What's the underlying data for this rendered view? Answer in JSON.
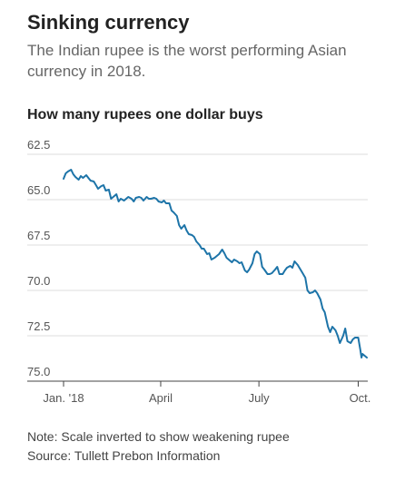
{
  "title": "Sinking currency",
  "subtitle": "The Indian rupee is the worst performing Asian currency in 2018.",
  "chart_title": "How many rupees one dollar buys",
  "note": "Note: Scale inverted to show weakening rupee",
  "source": "Source: Tullett Prebon Information",
  "colors": {
    "line": "#1d74a8",
    "grid": "#dddddd",
    "axis": "#444444"
  },
  "chart_data": {
    "type": "line",
    "xlabel": "",
    "ylabel": "",
    "y_inverted": true,
    "ylim": [
      62.5,
      75.0
    ],
    "y_ticks": [
      62.5,
      65.0,
      67.5,
      70.0,
      72.5,
      75.0
    ],
    "y_tick_labels": [
      "62.5",
      "65.0",
      "67.5",
      "70.0",
      "72.5",
      "75.0"
    ],
    "x_ticks": [
      {
        "label": "Jan. '18",
        "date": "2018-01-01"
      },
      {
        "label": "April",
        "date": "2018-04-01"
      },
      {
        "label": "July",
        "date": "2018-07-01"
      },
      {
        "label": "Oct.",
        "date": "2018-10-01"
      }
    ],
    "series": [
      {
        "x": [
          "2018-01-01",
          "2018-01-03",
          "2018-01-05",
          "2018-01-08",
          "2018-01-10",
          "2018-01-12",
          "2018-01-15",
          "2018-01-17",
          "2018-01-19",
          "2018-01-22",
          "2018-01-24",
          "2018-01-26",
          "2018-01-29",
          "2018-01-31",
          "2018-02-02",
          "2018-02-05",
          "2018-02-07",
          "2018-02-09",
          "2018-02-12",
          "2018-02-14",
          "2018-02-16",
          "2018-02-19",
          "2018-02-21",
          "2018-02-23",
          "2018-02-26",
          "2018-02-28",
          "2018-03-02",
          "2018-03-05",
          "2018-03-07",
          "2018-03-09",
          "2018-03-12",
          "2018-03-14",
          "2018-03-16",
          "2018-03-19",
          "2018-03-21",
          "2018-03-23",
          "2018-03-26",
          "2018-03-28",
          "2018-03-30",
          "2018-04-02",
          "2018-04-04",
          "2018-04-06",
          "2018-04-09",
          "2018-04-11",
          "2018-04-13",
          "2018-04-16",
          "2018-04-18",
          "2018-04-20",
          "2018-04-23",
          "2018-04-25",
          "2018-04-27",
          "2018-04-30",
          "2018-05-02",
          "2018-05-04",
          "2018-05-07",
          "2018-05-09",
          "2018-05-11",
          "2018-05-14",
          "2018-05-16",
          "2018-05-18",
          "2018-05-21",
          "2018-05-23",
          "2018-05-25",
          "2018-05-28",
          "2018-05-30",
          "2018-06-01",
          "2018-06-04",
          "2018-06-06",
          "2018-06-08",
          "2018-06-11",
          "2018-06-13",
          "2018-06-15",
          "2018-06-18",
          "2018-06-20",
          "2018-06-22",
          "2018-06-25",
          "2018-06-27",
          "2018-06-29",
          "2018-07-02",
          "2018-07-04",
          "2018-07-06",
          "2018-07-09",
          "2018-07-11",
          "2018-07-13",
          "2018-07-16",
          "2018-07-18",
          "2018-07-20",
          "2018-07-23",
          "2018-07-25",
          "2018-07-27",
          "2018-07-30",
          "2018-08-01",
          "2018-08-03",
          "2018-08-06",
          "2018-08-08",
          "2018-08-10",
          "2018-08-13",
          "2018-08-15",
          "2018-08-17",
          "2018-08-20",
          "2018-08-22",
          "2018-08-24",
          "2018-08-27",
          "2018-08-29",
          "2018-08-31",
          "2018-09-03",
          "2018-09-05",
          "2018-09-07",
          "2018-09-10",
          "2018-09-12",
          "2018-09-14",
          "2018-09-17",
          "2018-09-19",
          "2018-09-21",
          "2018-09-24",
          "2018-09-26",
          "2018-09-28",
          "2018-10-01",
          "2018-10-03",
          "2018-10-04",
          "2018-10-05",
          "2018-10-08",
          "2018-10-09"
        ],
        "y": [
          63.85,
          63.55,
          63.45,
          63.35,
          63.6,
          63.75,
          63.9,
          63.7,
          63.8,
          63.65,
          63.8,
          63.95,
          64.0,
          64.2,
          64.4,
          64.25,
          64.2,
          64.5,
          64.45,
          64.95,
          64.85,
          64.7,
          65.1,
          64.95,
          65.05,
          64.95,
          64.85,
          64.95,
          65.1,
          64.9,
          64.85,
          64.9,
          65.05,
          64.85,
          64.95,
          64.95,
          64.9,
          64.95,
          65.1,
          65.15,
          65.05,
          65.2,
          65.2,
          65.6,
          65.7,
          65.9,
          66.4,
          66.6,
          66.4,
          66.7,
          66.9,
          66.95,
          67.05,
          67.3,
          67.5,
          67.7,
          67.7,
          68.0,
          67.95,
          68.3,
          68.2,
          68.1,
          68.0,
          67.75,
          67.95,
          68.2,
          68.35,
          68.45,
          68.3,
          68.4,
          68.5,
          68.45,
          68.9,
          69.0,
          68.85,
          68.5,
          68.0,
          67.85,
          68.0,
          68.7,
          68.85,
          69.1,
          69.1,
          69.05,
          68.85,
          68.7,
          69.1,
          69.1,
          68.9,
          68.75,
          68.65,
          68.75,
          68.4,
          68.6,
          68.8,
          69.0,
          69.3,
          70.0,
          70.15,
          70.1,
          70.0,
          70.15,
          70.5,
          71.0,
          71.2,
          72.0,
          72.3,
          72.0,
          72.2,
          72.5,
          72.9,
          72.5,
          72.1,
          72.8,
          72.9,
          72.7,
          72.6,
          72.6,
          73.3,
          73.7,
          73.5,
          73.65,
          73.7
        ]
      }
    ]
  }
}
